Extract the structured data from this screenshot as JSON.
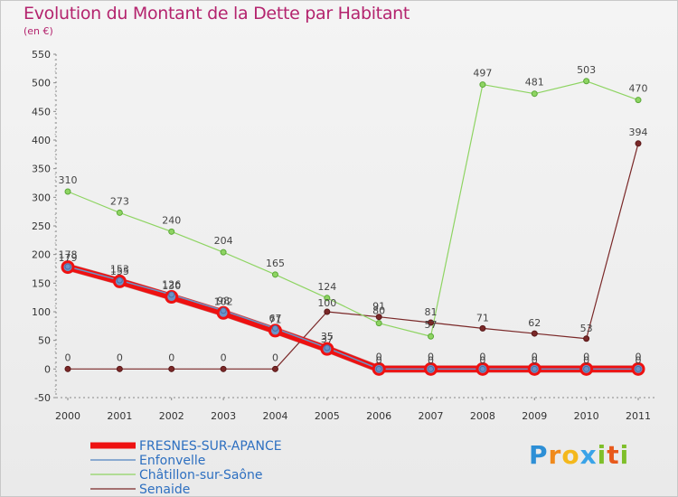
{
  "title": "Evolution du Montant de la Dette par Habitant",
  "subtitle": "(en €)",
  "brand": "Proxiti",
  "chart_data": {
    "type": "line",
    "title": "Evolution du Montant de la Dette par Habitant",
    "ylabel": "(en €)",
    "xlabel": "",
    "x": [
      "2000",
      "2001",
      "2002",
      "2003",
      "2004",
      "2005",
      "2006",
      "2007",
      "2008",
      "2009",
      "2010",
      "2011"
    ],
    "ylim": [
      -50,
      550
    ],
    "yticks": [
      -50,
      0,
      50,
      100,
      150,
      200,
      250,
      300,
      350,
      400,
      450,
      500,
      550
    ],
    "grid": false,
    "legend_position": "bottom-left",
    "series": [
      {
        "name": "FRESNES-SUR-APANCE",
        "color": "#ee1111",
        "values": [
          178,
          153,
          126,
          98,
          67,
          35,
          0,
          0,
          0,
          0,
          0,
          0
        ],
        "labels": [
          "178",
          "153",
          "126",
          "98",
          "67",
          "35",
          "0",
          "0",
          "0",
          "0",
          "0",
          "0"
        ]
      },
      {
        "name": "Enfonvelle",
        "color": "#6a95c8",
        "values": [
          179,
          155,
          130,
          102,
          71,
          37,
          0,
          0,
          0,
          0,
          0,
          0
        ],
        "labels": [
          "179",
          "155",
          "130",
          "102",
          "71",
          "37",
          "0",
          "0",
          "0",
          "0",
          "0",
          "0"
        ]
      },
      {
        "name": "Châtillon-sur-Saône",
        "color": "#8ed462",
        "values": [
          310,
          273,
          240,
          204,
          165,
          124,
          80,
          57,
          497,
          481,
          503,
          470
        ],
        "labels": [
          "310",
          "273",
          "240",
          "204",
          "165",
          "124",
          "80",
          "57",
          "497",
          "481",
          "503",
          "470"
        ]
      },
      {
        "name": "Senaide",
        "color": "#7a2828",
        "values": [
          0,
          0,
          0,
          0,
          0,
          100,
          91,
          81,
          71,
          62,
          53,
          394
        ],
        "labels": [
          "0",
          "0",
          "0",
          "0",
          "0",
          "100",
          "91",
          "81",
          "71",
          "62",
          "53",
          "394"
        ]
      }
    ]
  }
}
